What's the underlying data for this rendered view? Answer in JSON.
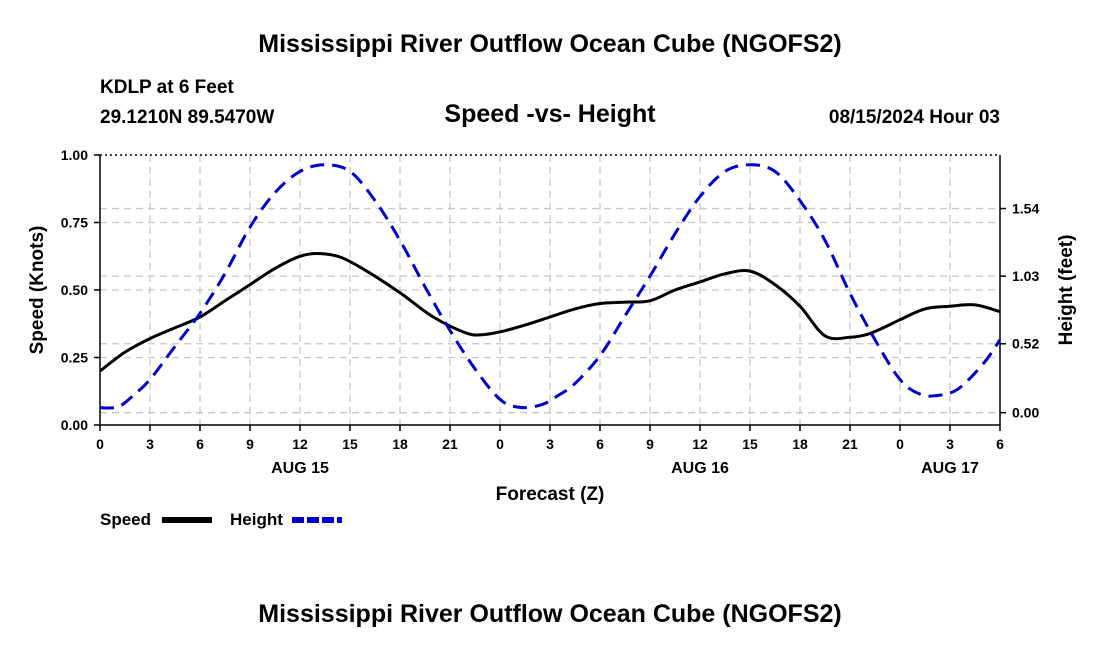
{
  "page": {
    "title": "Mississippi River Outflow Ocean Cube (NGOFS2)",
    "title_repeat": "Mississippi River Outflow Ocean Cube (NGOFS2)",
    "station": "KDLP at 6 Feet",
    "coords": "29.1210N  89.5470W",
    "subtitle": "Speed -vs- Height",
    "date": "08/15/2024 Hour 03"
  },
  "chart_data": {
    "type": "line",
    "title": "Speed -vs- Height",
    "xlabel": "Forecast (Z)",
    "ylabel": "Speed (Knots)",
    "y2label": "Height (feet)",
    "xlim": [
      0,
      54
    ],
    "ylim": [
      0,
      1.0
    ],
    "y2lim": [
      -0.093,
      1.944
    ],
    "xticks": [
      0,
      3,
      6,
      9,
      12,
      15,
      18,
      21,
      24,
      27,
      30,
      33,
      36,
      39,
      42,
      45,
      48,
      51,
      54
    ],
    "xtick_labels": [
      "0",
      "3",
      "6",
      "9",
      "12",
      "15",
      "18",
      "21",
      "0",
      "3",
      "6",
      "9",
      "12",
      "15",
      "18",
      "21",
      "0",
      "3",
      "6"
    ],
    "yticks": [
      0,
      0.25,
      0.5,
      0.75,
      1.0
    ],
    "ytick_labels": [
      "0.00",
      "0.25",
      "0.50",
      "0.75",
      "1.00"
    ],
    "y2ticks": [
      0.0,
      0.52,
      1.03,
      1.54
    ],
    "y2tick_labels": [
      "0.00",
      "0.52",
      "1.03",
      "1.54"
    ],
    "day_labels": [
      {
        "x": 12,
        "label": "AUG 15"
      },
      {
        "x": 36,
        "label": "AUG 16"
      },
      {
        "x": 51,
        "label": "AUG 17"
      }
    ],
    "grid": true,
    "series": [
      {
        "name": "Speed",
        "axis": "left",
        "color": "#000000",
        "dash": "solid",
        "x": [
          0,
          1.5,
          3,
          4.5,
          6,
          7.5,
          9,
          10.5,
          12,
          13.2,
          14.5,
          16,
          18,
          20,
          22,
          23,
          24,
          25.5,
          27,
          28.5,
          30,
          31.5,
          33,
          34.5,
          36,
          37.5,
          39,
          40.5,
          42,
          43.5,
          45,
          46,
          47,
          48,
          49.5,
          51,
          52.5,
          54
        ],
        "values": [
          0.2,
          0.27,
          0.32,
          0.36,
          0.4,
          0.46,
          0.52,
          0.58,
          0.625,
          0.635,
          0.62,
          0.57,
          0.49,
          0.4,
          0.34,
          0.335,
          0.345,
          0.37,
          0.4,
          0.43,
          0.45,
          0.455,
          0.46,
          0.5,
          0.53,
          0.56,
          0.57,
          0.52,
          0.44,
          0.33,
          0.325,
          0.335,
          0.36,
          0.39,
          0.43,
          0.44,
          0.445,
          0.42
        ]
      },
      {
        "name": "Height",
        "axis": "right",
        "color": "#0000cc",
        "dash": "dashed",
        "x": [
          0,
          0.5,
          1.2,
          2,
          3,
          4.5,
          6,
          7.5,
          9,
          10.5,
          12,
          13.5,
          15,
          16.5,
          18,
          19.5,
          21,
          22.5,
          24,
          25.2,
          26.5,
          27.5,
          28.5,
          30,
          31.5,
          33,
          34.5,
          36,
          37.5,
          39,
          40.5,
          42,
          43.5,
          45,
          46.5,
          48,
          49.2,
          50.3,
          51.5,
          53,
          54
        ],
        "values": [
          0.04,
          0.035,
          0.05,
          0.13,
          0.25,
          0.5,
          0.75,
          1.05,
          1.4,
          1.66,
          1.82,
          1.87,
          1.82,
          1.6,
          1.3,
          0.95,
          0.62,
          0.33,
          0.1,
          0.04,
          0.06,
          0.13,
          0.22,
          0.43,
          0.73,
          1.03,
          1.35,
          1.63,
          1.82,
          1.87,
          1.82,
          1.6,
          1.3,
          0.9,
          0.55,
          0.25,
          0.14,
          0.13,
          0.18,
          0.37,
          0.55
        ]
      }
    ],
    "legend": [
      {
        "label": "Speed",
        "color": "#000000",
        "dash": "solid"
      },
      {
        "label": "Height",
        "color": "#0000cc",
        "dash": "dashed"
      }
    ],
    "legend_position": "bottom-left"
  }
}
